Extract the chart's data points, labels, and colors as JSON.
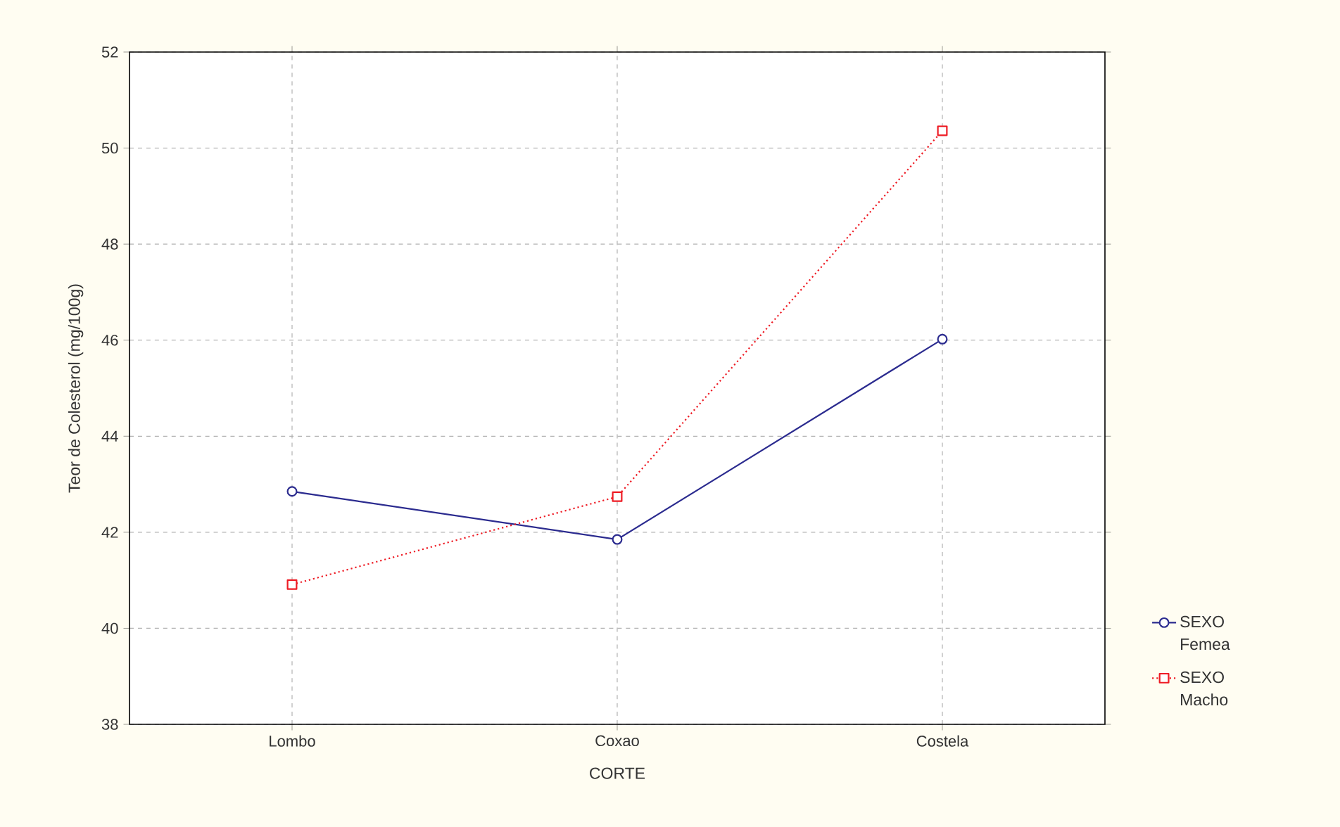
{
  "chart_data": {
    "type": "line",
    "xlabel": "CORTE",
    "ylabel": "Teor de Colesterol (mg/100g)",
    "categories": [
      "Lombo",
      "Coxao",
      "Costela"
    ],
    "series": [
      {
        "name": "SEXO Femea",
        "color": "#2b2b8f",
        "values": [
          42.85,
          41.85,
          46.02
        ],
        "marker": "circle",
        "line_style": "solid"
      },
      {
        "name": "SEXO Macho",
        "color": "#ee1c25",
        "values": [
          40.91,
          42.74,
          50.36
        ],
        "marker": "square",
        "line_style": "dotted"
      }
    ],
    "ylim": [
      38,
      52
    ],
    "yticks": [
      38,
      40,
      42,
      44,
      46,
      48,
      50,
      52
    ],
    "grid": true,
    "legend": "right"
  }
}
